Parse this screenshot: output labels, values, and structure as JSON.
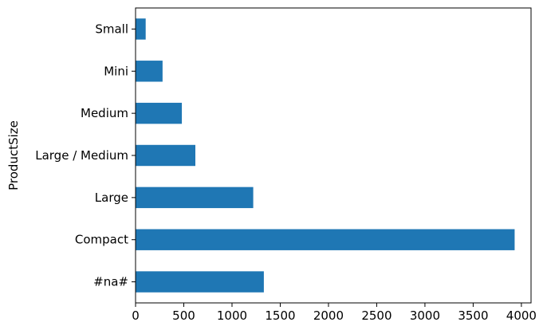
{
  "chart_data": {
    "type": "bar",
    "orientation": "horizontal",
    "categories": [
      "#na#",
      "Compact",
      "Large",
      "Large / Medium",
      "Medium",
      "Mini",
      "Small"
    ],
    "values": [
      1330,
      3930,
      1220,
      620,
      480,
      280,
      105
    ],
    "xlabel": "",
    "ylabel": "ProductSize",
    "xlim": [
      0,
      4100
    ],
    "xticks": [
      0,
      500,
      1000,
      1500,
      2000,
      2500,
      3000,
      3500,
      4000
    ],
    "bar_color": "#1f77b4",
    "grid": false,
    "legend": "none"
  }
}
